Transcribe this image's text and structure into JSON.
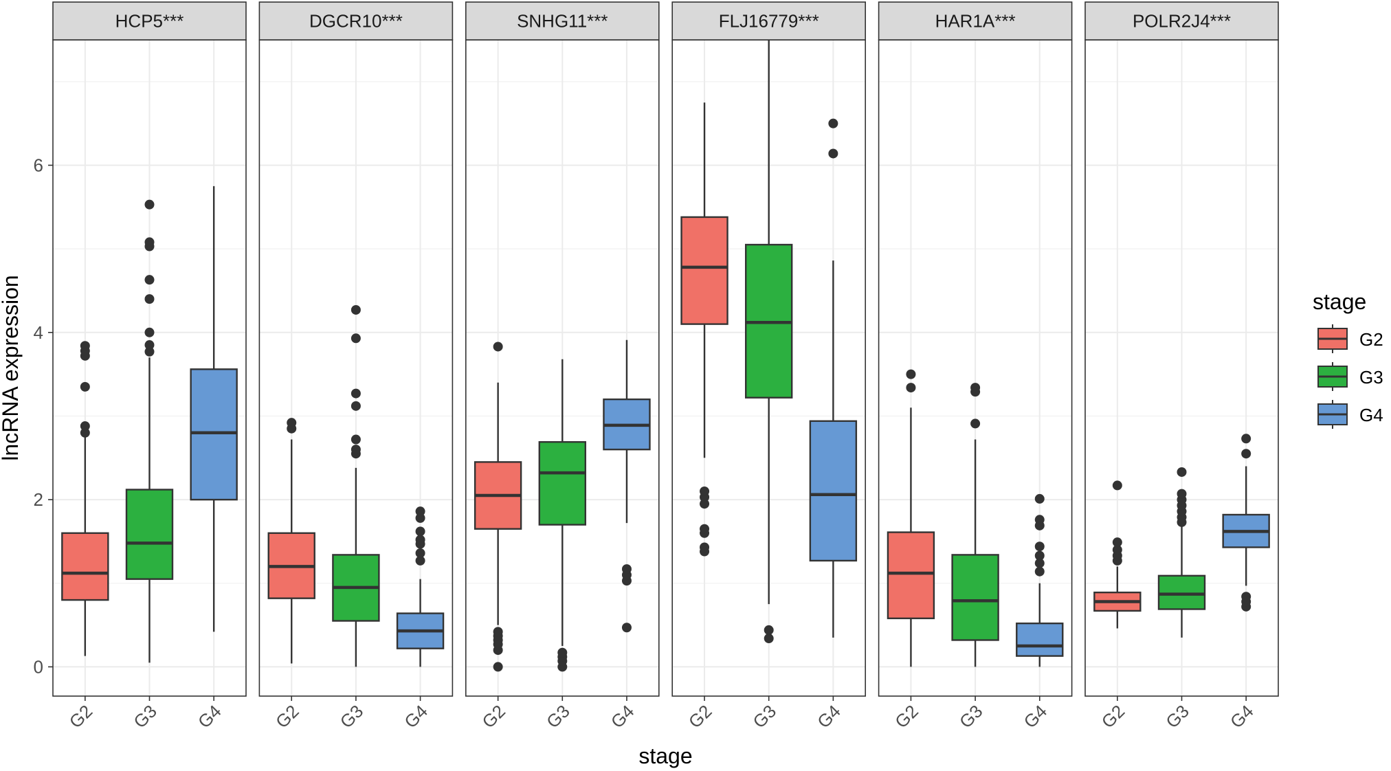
{
  "chart_data": {
    "type": "boxplot",
    "xlabel": "stage",
    "ylabel": "lncRNA expression",
    "ylim": [
      -0.35,
      7.5
    ],
    "yticks": [
      0,
      2,
      4,
      6
    ],
    "categories": [
      "G2",
      "G3",
      "G4"
    ],
    "colors": {
      "G2": "#F07167",
      "G3": "#2CB040",
      "G4": "#6699D4"
    },
    "legend": {
      "title": "stage",
      "entries": [
        "G2",
        "G3",
        "G4"
      ],
      "position": "right"
    },
    "panels": [
      {
        "title": "HCP5***",
        "boxes": [
          {
            "stage": "G2",
            "whisker_low": 0.13,
            "q1": 0.8,
            "median": 1.12,
            "q3": 1.6,
            "whisker_high": 2.75,
            "outliers": [
              2.8,
              2.88,
              3.35,
              3.72,
              3.78,
              3.84
            ]
          },
          {
            "stage": "G3",
            "whisker_low": 0.05,
            "q1": 1.05,
            "median": 1.48,
            "q3": 2.12,
            "whisker_high": 3.7,
            "outliers": [
              3.77,
              3.85,
              4.0,
              4.4,
              4.63,
              5.03,
              5.08,
              5.53
            ]
          },
          {
            "stage": "G4",
            "whisker_low": 0.42,
            "q1": 2.0,
            "median": 2.8,
            "q3": 3.56,
            "whisker_high": 5.75,
            "outliers": []
          }
        ]
      },
      {
        "title": "DGCR10***",
        "boxes": [
          {
            "stage": "G2",
            "whisker_low": 0.04,
            "q1": 0.82,
            "median": 1.2,
            "q3": 1.6,
            "whisker_high": 2.72,
            "outliers": [
              2.85,
              2.92
            ]
          },
          {
            "stage": "G3",
            "whisker_low": 0.0,
            "q1": 0.55,
            "median": 0.95,
            "q3": 1.34,
            "whisker_high": 2.38,
            "outliers": [
              2.55,
              2.6,
              2.72,
              3.12,
              3.27,
              3.93,
              4.27
            ]
          },
          {
            "stage": "G4",
            "whisker_low": 0.0,
            "q1": 0.22,
            "median": 0.43,
            "q3": 0.64,
            "whisker_high": 1.05,
            "outliers": [
              1.27,
              1.36,
              1.47,
              1.52,
              1.62,
              1.78,
              1.86
            ]
          }
        ]
      },
      {
        "title": "SNHG11***",
        "boxes": [
          {
            "stage": "G2",
            "whisker_low": 0.5,
            "q1": 1.65,
            "median": 2.05,
            "q3": 2.45,
            "whisker_high": 3.4,
            "outliers": [
              0.0,
              0.2,
              0.27,
              0.32,
              0.37,
              0.42,
              3.83
            ]
          },
          {
            "stage": "G3",
            "whisker_low": 0.25,
            "q1": 1.7,
            "median": 2.32,
            "q3": 2.69,
            "whisker_high": 3.68,
            "outliers": [
              0.0,
              0.07,
              0.12,
              0.17
            ]
          },
          {
            "stage": "G4",
            "whisker_low": 1.72,
            "q1": 2.6,
            "median": 2.89,
            "q3": 3.2,
            "whisker_high": 3.91,
            "outliers": [
              0.47,
              1.03,
              1.1,
              1.17
            ]
          }
        ]
      },
      {
        "title": "FLJ16779***",
        "boxes": [
          {
            "stage": "G2",
            "whisker_low": 2.5,
            "q1": 4.1,
            "median": 4.78,
            "q3": 5.38,
            "whisker_high": 6.75,
            "outliers": [
              1.38,
              1.43,
              1.6,
              1.65,
              1.95,
              2.03,
              2.1
            ]
          },
          {
            "stage": "G3",
            "whisker_low": 0.75,
            "q1": 3.22,
            "median": 4.12,
            "q3": 5.05,
            "whisker_high": 7.57,
            "outliers": [
              0.34,
              0.44
            ]
          },
          {
            "stage": "G4",
            "whisker_low": 0.35,
            "q1": 1.27,
            "median": 2.06,
            "q3": 2.94,
            "whisker_high": 4.86,
            "outliers": [
              6.14,
              6.5
            ]
          }
        ]
      },
      {
        "title": "HAR1A***",
        "boxes": [
          {
            "stage": "G2",
            "whisker_low": 0.0,
            "q1": 0.58,
            "median": 1.12,
            "q3": 1.61,
            "whisker_high": 3.1,
            "outliers": [
              3.34,
              3.5
            ]
          },
          {
            "stage": "G3",
            "whisker_low": 0.0,
            "q1": 0.32,
            "median": 0.79,
            "q3": 1.34,
            "whisker_high": 2.72,
            "outliers": [
              2.91,
              3.29,
              3.34
            ]
          },
          {
            "stage": "G4",
            "whisker_low": 0.0,
            "q1": 0.13,
            "median": 0.25,
            "q3": 0.52,
            "whisker_high": 1.0,
            "outliers": [
              1.14,
              1.24,
              1.33,
              1.44,
              1.69,
              1.76,
              2.01
            ]
          }
        ]
      },
      {
        "title": "POLR2J4***",
        "boxes": [
          {
            "stage": "G2",
            "whisker_low": 0.46,
            "q1": 0.67,
            "median": 0.78,
            "q3": 0.89,
            "whisker_high": 1.2,
            "outliers": [
              1.27,
              1.33,
              1.4,
              1.49,
              2.17
            ]
          },
          {
            "stage": "G3",
            "whisker_low": 0.35,
            "q1": 0.69,
            "median": 0.87,
            "q3": 1.09,
            "whisker_high": 1.68,
            "outliers": [
              1.73,
              1.79,
              1.86,
              1.93,
              2.0,
              2.07,
              2.33
            ]
          },
          {
            "stage": "G4",
            "whisker_low": 0.97,
            "q1": 1.43,
            "median": 1.62,
            "q3": 1.82,
            "whisker_high": 2.4,
            "outliers": [
              0.72,
              0.78,
              0.84,
              2.55,
              2.73
            ]
          }
        ]
      }
    ]
  }
}
